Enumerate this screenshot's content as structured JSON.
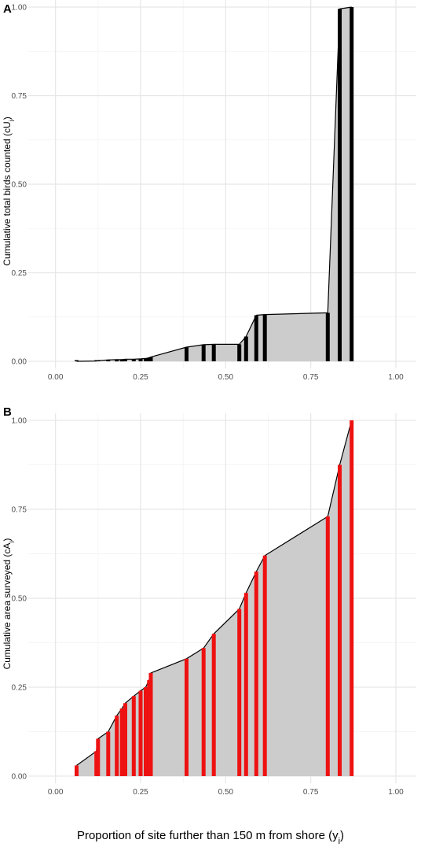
{
  "figure": {
    "xlabel_main": "Proportion of site further than 150 m from shore (y",
    "xlabel_sub": "i",
    "xlabel_end": ")"
  },
  "chart_data": [
    {
      "type": "area",
      "panel": "A",
      "title": "",
      "ylabel": "Cumulative total birds counted (cU",
      "ylabel_sub": "i",
      "ylabel_end": ")",
      "xlim": [
        -0.08,
        1.06
      ],
      "ylim": [
        -0.02,
        1.02
      ],
      "xticks": [
        0.0,
        0.25,
        0.5,
        0.75,
        1.0
      ],
      "xtick_labels": [
        "0.00",
        "0.25",
        "0.50",
        "0.75",
        "1.00"
      ],
      "yticks": [
        0.0,
        0.25,
        0.5,
        0.75,
        1.0
      ],
      "ytick_labels": [
        "0.00",
        "0.25",
        "0.50",
        "0.75",
        "1.00"
      ],
      "grid": true,
      "fill_color": "#cccccc",
      "bar_color": "#000000",
      "x": [
        0.062,
        0.12,
        0.125,
        0.155,
        0.18,
        0.195,
        0.205,
        0.23,
        0.25,
        0.265,
        0.275,
        0.28,
        0.385,
        0.435,
        0.465,
        0.54,
        0.56,
        0.59,
        0.615,
        0.8,
        0.835,
        0.87
      ],
      "y": [
        0.0,
        0.001,
        0.002,
        0.004,
        0.005,
        0.005,
        0.006,
        0.006,
        0.007,
        0.008,
        0.01,
        0.012,
        0.04,
        0.047,
        0.048,
        0.048,
        0.07,
        0.13,
        0.132,
        0.137,
        0.995,
        1.0
      ]
    },
    {
      "type": "area",
      "panel": "B",
      "title": "",
      "ylabel": "Cumulative area surveyed (cA",
      "ylabel_sub": "i",
      "ylabel_end": ")",
      "xlim": [
        -0.08,
        1.06
      ],
      "ylim": [
        -0.02,
        1.02
      ],
      "xticks": [
        0.0,
        0.25,
        0.5,
        0.75,
        1.0
      ],
      "xtick_labels": [
        "0.00",
        "0.25",
        "0.50",
        "0.75",
        "1.00"
      ],
      "yticks": [
        0.0,
        0.25,
        0.5,
        0.75,
        1.0
      ],
      "ytick_labels": [
        "0.00",
        "0.25",
        "0.50",
        "0.75",
        "1.00"
      ],
      "grid": true,
      "fill_color": "#cccccc",
      "bar_color": "#ee1111",
      "x": [
        0.062,
        0.12,
        0.125,
        0.155,
        0.18,
        0.195,
        0.205,
        0.23,
        0.25,
        0.265,
        0.275,
        0.28,
        0.385,
        0.435,
        0.465,
        0.54,
        0.56,
        0.59,
        0.615,
        0.8,
        0.835,
        0.87
      ],
      "y": [
        0.03,
        0.07,
        0.105,
        0.125,
        0.17,
        0.19,
        0.205,
        0.225,
        0.24,
        0.25,
        0.27,
        0.29,
        0.33,
        0.36,
        0.4,
        0.47,
        0.515,
        0.575,
        0.62,
        0.73,
        0.875,
        1.0
      ]
    }
  ]
}
